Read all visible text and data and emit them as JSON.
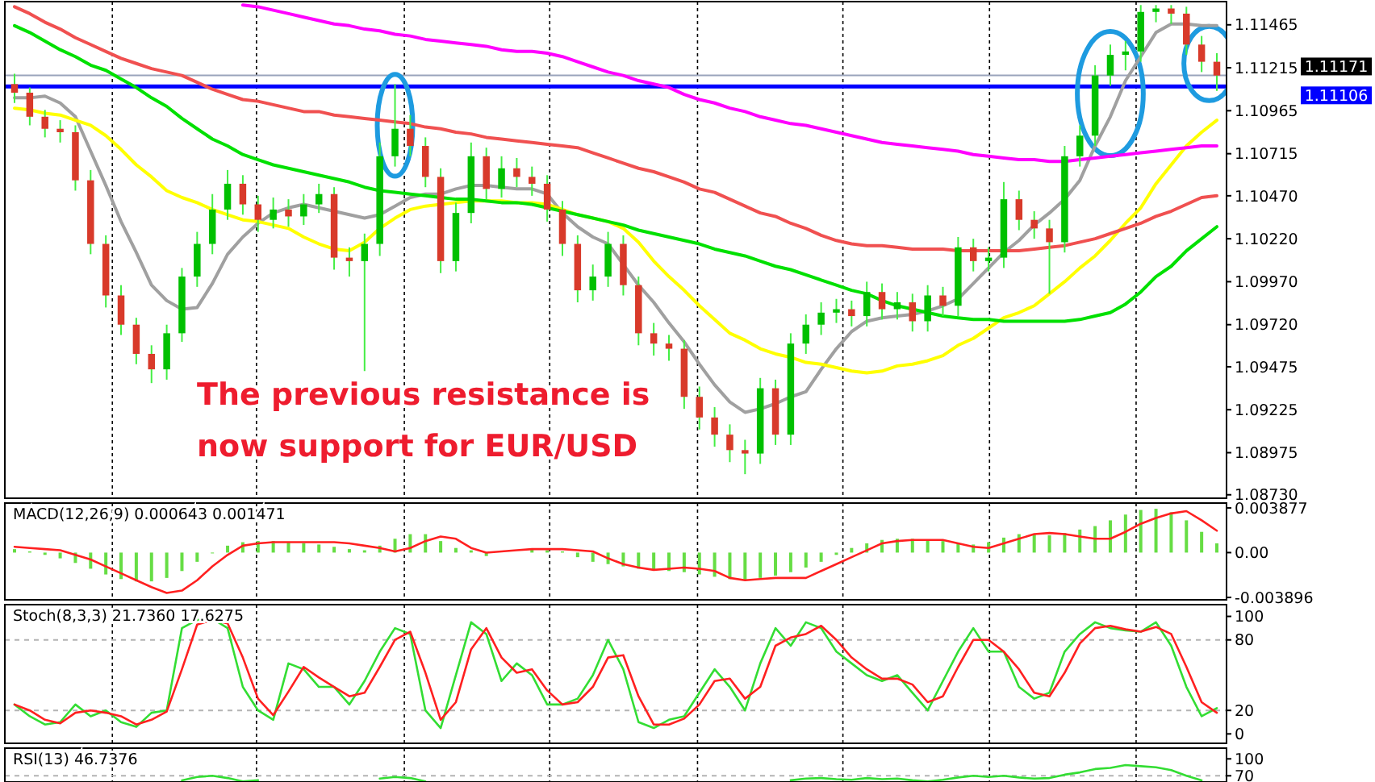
{
  "chart_data": [
    {
      "type": "candlestick",
      "grid": "x",
      "categories": [
        null,
        null,
        null,
        null,
        null,
        null,
        null,
        null,
        null,
        null,
        null,
        null,
        null,
        null,
        null,
        null,
        null,
        null,
        null,
        null,
        null,
        null,
        null,
        null,
        null,
        null,
        null,
        null,
        null,
        null,
        null,
        null,
        null,
        null,
        null,
        null,
        null,
        null,
        null,
        null,
        null,
        null,
        null,
        null,
        null,
        null,
        null,
        null,
        null,
        null,
        null,
        null,
        null,
        null,
        null,
        null,
        null,
        null,
        null,
        null,
        null,
        null,
        null,
        null,
        null,
        null,
        null,
        null,
        null,
        null,
        null,
        null,
        null,
        null,
        null,
        null,
        null,
        null,
        null,
        null
      ],
      "ohlc": [
        [
          1.1112,
          1.1118,
          1.1101,
          1.1107
        ],
        [
          1.1107,
          1.111,
          1.1088,
          1.1093
        ],
        [
          1.1093,
          1.1097,
          1.1081,
          1.1086
        ],
        [
          1.1086,
          1.1091,
          1.1078,
          1.1084
        ],
        [
          1.1084,
          1.1088,
          1.105,
          1.1056
        ],
        [
          1.1056,
          1.1062,
          1.1013,
          1.1019
        ],
        [
          1.1019,
          1.1024,
          1.0982,
          1.0989
        ],
        [
          1.0989,
          1.0995,
          1.0966,
          1.0972
        ],
        [
          1.0972,
          1.0976,
          1.0949,
          1.0955
        ],
        [
          1.0955,
          1.096,
          1.0938,
          1.0946
        ],
        [
          1.0946,
          1.0972,
          1.094,
          1.0967
        ],
        [
          1.0967,
          1.1005,
          1.0962,
          1.1
        ],
        [
          1.1,
          1.1026,
          1.0994,
          1.1019
        ],
        [
          1.1019,
          1.1048,
          1.1013,
          1.1039
        ],
        [
          1.1039,
          1.1062,
          1.1033,
          1.1054
        ],
        [
          1.1054,
          1.1059,
          1.1036,
          1.1042
        ],
        [
          1.1042,
          1.1047,
          1.1026,
          1.1033
        ],
        [
          1.1033,
          1.1046,
          1.1028,
          1.1039
        ],
        [
          1.1039,
          1.1045,
          1.1029,
          1.1035
        ],
        [
          1.1035,
          1.1048,
          1.103,
          1.1042
        ],
        [
          1.1042,
          1.1054,
          1.1037,
          1.1048
        ],
        [
          1.1048,
          1.1052,
          1.1004,
          1.1011
        ],
        [
          1.1011,
          1.1017,
          1.1,
          1.1009
        ],
        [
          1.1009,
          1.1025,
          1.0945,
          1.1019
        ],
        [
          1.1019,
          1.1078,
          1.1012,
          1.107
        ],
        [
          1.107,
          1.1112,
          1.1064,
          1.1086
        ],
        [
          1.1086,
          1.1094,
          1.107,
          1.1076
        ],
        [
          1.1076,
          1.1081,
          1.1052,
          1.1058
        ],
        [
          1.1058,
          1.1063,
          1.1002,
          1.1009
        ],
        [
          1.1009,
          1.1043,
          1.1003,
          1.1037
        ],
        [
          1.1037,
          1.1078,
          1.1031,
          1.107
        ],
        [
          1.107,
          1.1075,
          1.1045,
          1.1051
        ],
        [
          1.1051,
          1.107,
          1.1046,
          1.1063
        ],
        [
          1.1063,
          1.1069,
          1.1052,
          1.1058
        ],
        [
          1.1058,
          1.1064,
          1.1047,
          1.1054
        ],
        [
          1.1054,
          1.1059,
          1.1032,
          1.1039
        ],
        [
          1.1039,
          1.1044,
          1.1012,
          1.1019
        ],
        [
          1.1019,
          1.1024,
          1.0985,
          1.0992
        ],
        [
          1.0992,
          1.1007,
          1.0986,
          1.1
        ],
        [
          1.1,
          1.1026,
          1.0994,
          1.1019
        ],
        [
          1.1019,
          1.1024,
          1.0989,
          1.0995
        ],
        [
          1.0995,
          1.1,
          1.096,
          1.0967
        ],
        [
          1.0967,
          1.0973,
          1.0954,
          1.0961
        ],
        [
          1.0961,
          1.0966,
          1.0951,
          1.0958
        ],
        [
          1.0958,
          1.0963,
          1.0923,
          1.093
        ],
        [
          1.093,
          1.0936,
          1.0911,
          1.0918
        ],
        [
          1.0918,
          1.0924,
          1.0901,
          1.0908
        ],
        [
          1.0908,
          1.0914,
          1.0892,
          1.0899
        ],
        [
          1.0899,
          1.0905,
          1.0885,
          1.0897
        ],
        [
          1.0897,
          1.0941,
          1.0891,
          1.0935
        ],
        [
          1.0935,
          1.094,
          1.0902,
          1.0908
        ],
        [
          1.0908,
          1.0967,
          1.0902,
          1.0961
        ],
        [
          1.0961,
          1.0978,
          1.0955,
          1.0972
        ],
        [
          1.0972,
          1.0985,
          1.0966,
          1.0979
        ],
        [
          1.0979,
          1.0987,
          1.0973,
          1.0981
        ],
        [
          1.0981,
          1.0986,
          1.0971,
          1.0977
        ],
        [
          1.0977,
          1.0997,
          1.0971,
          1.0991
        ],
        [
          1.0991,
          1.0996,
          1.0975,
          1.0981
        ],
        [
          1.0981,
          1.0991,
          1.0975,
          1.0985
        ],
        [
          1.0985,
          1.099,
          1.0968,
          1.0974
        ],
        [
          1.0974,
          1.0995,
          1.0968,
          1.0989
        ],
        [
          1.0989,
          1.0994,
          1.0977,
          1.0983
        ],
        [
          1.0983,
          1.1023,
          1.0977,
          1.1017
        ],
        [
          1.1017,
          1.1022,
          1.1003,
          1.1009
        ],
        [
          1.1009,
          1.1017,
          1.1003,
          1.1011
        ],
        [
          1.1011,
          1.1055,
          1.1005,
          1.1045
        ],
        [
          1.1045,
          1.105,
          1.1027,
          1.1033
        ],
        [
          1.1033,
          1.1038,
          1.1022,
          1.1028
        ],
        [
          1.1028,
          1.1033,
          1.099,
          1.102
        ],
        [
          1.102,
          1.1076,
          1.1014,
          1.107
        ],
        [
          1.107,
          1.1088,
          1.1064,
          1.1082
        ],
        [
          1.1082,
          1.1123,
          1.1076,
          1.1117
        ],
        [
          1.1117,
          1.1135,
          1.1111,
          1.1129
        ],
        [
          1.1129,
          1.1137,
          1.112,
          1.1131
        ],
        [
          1.1131,
          1.1158,
          1.1125,
          1.1154
        ],
        [
          1.1154,
          1.1158,
          1.1148,
          1.1156
        ],
        [
          1.1156,
          1.1158,
          1.1147,
          1.1153
        ],
        [
          1.1153,
          1.1157,
          1.1129,
          1.1135
        ],
        [
          1.1135,
          1.114,
          1.1119,
          1.1125
        ],
        [
          1.1125,
          1.113,
          1.1108,
          1.1117
        ]
      ],
      "series": [
        {
          "type": "line",
          "color": "#a0a0a0",
          "values": [
            1.1104,
            1.1104,
            1.1105,
            1.1101,
            1.1093,
            1.1073,
            1.1053,
            1.1032,
            1.1014,
            1.0995,
            1.0986,
            1.0981,
            1.0982,
            1.0996,
            1.1013,
            1.1023,
            1.1031,
            1.1037,
            1.104,
            1.1042,
            1.104,
            1.1038,
            1.1036,
            1.1034,
            1.1036,
            1.1041,
            1.1046,
            1.1048,
            1.1048,
            1.1051,
            1.1053,
            1.1053,
            1.1052,
            1.1051,
            1.1051,
            1.1048,
            1.1037,
            1.1029,
            1.1023,
            1.1019,
            1.1007,
            1.0995,
            1.0985,
            1.0973,
            1.0962,
            1.0949,
            1.0937,
            1.0927,
            1.0921,
            1.0923,
            1.0926,
            1.093,
            1.0933,
            1.0946,
            1.0958,
            1.0968,
            1.0974,
            1.0976,
            1.0977,
            1.0978,
            1.098,
            1.0983,
            1.0987,
            1.0996,
            1.1005,
            1.1014,
            1.1021,
            1.103,
            1.1037,
            1.1045,
            1.1056,
            1.1076,
            1.1093,
            1.1114,
            1.1128,
            1.1142,
            1.1147,
            1.1147,
            1.1146,
            1.1146
          ]
        },
        {
          "type": "line",
          "color": "#ffff00",
          "values": [
            1.1098,
            1.1097,
            1.1095,
            1.1094,
            1.1091,
            1.1088,
            1.1082,
            1.1074,
            1.1065,
            1.1058,
            1.105,
            1.1046,
            1.1043,
            1.1039,
            1.1036,
            1.1033,
            1.1032,
            1.103,
            1.1028,
            1.1023,
            1.1019,
            1.1016,
            1.1015,
            1.102,
            1.1028,
            1.1034,
            1.1039,
            1.1041,
            1.1042,
            1.1043,
            1.1044,
            1.1044,
            1.1044,
            1.1043,
            1.1043,
            1.1042,
            1.1039,
            1.1036,
            1.1034,
            1.1032,
            1.1028,
            1.102,
            1.1009,
            1.1,
            1.0992,
            1.0983,
            1.0975,
            1.0967,
            1.0963,
            1.0958,
            1.0955,
            1.0953,
            1.095,
            1.0949,
            1.0947,
            1.0945,
            1.0944,
            1.0945,
            1.0948,
            1.0949,
            1.0951,
            1.0954,
            1.096,
            1.0964,
            1.097,
            1.0976,
            1.0979,
            1.0983,
            1.099,
            1.0997,
            1.1005,
            1.1012,
            1.1021,
            1.1031,
            1.104,
            1.1054,
            1.1065,
            1.1076,
            1.1084,
            1.1091
          ]
        },
        {
          "type": "line",
          "color": "#00e000",
          "values": [
            1.1146,
            1.1142,
            1.1137,
            1.1132,
            1.1128,
            1.1123,
            1.112,
            1.1115,
            1.111,
            1.1104,
            1.1099,
            1.1092,
            1.1086,
            1.108,
            1.1076,
            1.1071,
            1.1068,
            1.1065,
            1.1063,
            1.1061,
            1.1059,
            1.1057,
            1.1055,
            1.1052,
            1.105,
            1.1049,
            1.1048,
            1.1047,
            1.1046,
            1.1045,
            1.1045,
            1.1044,
            1.1043,
            1.1043,
            1.1042,
            1.104,
            1.1038,
            1.1036,
            1.1034,
            1.1032,
            1.103,
            1.1027,
            1.1025,
            1.1023,
            1.1021,
            1.1019,
            1.1016,
            1.1014,
            1.1012,
            1.1009,
            1.1006,
            1.1004,
            1.1001,
            1.0998,
            1.0995,
            1.0992,
            1.099,
            1.0986,
            1.0983,
            1.0981,
            1.0979,
            1.0977,
            1.0976,
            1.0975,
            1.0975,
            1.0974,
            1.0974,
            1.0974,
            1.0974,
            1.0974,
            1.0975,
            1.0977,
            1.0979,
            1.0984,
            1.0991,
            1.1,
            1.1006,
            1.1015,
            1.1022,
            1.1029
          ]
        },
        {
          "type": "line",
          "color": "#f05050",
          "values": [
            1.1157,
            1.1153,
            1.1148,
            1.1144,
            1.1139,
            1.1135,
            1.1131,
            1.1127,
            1.1124,
            1.1121,
            1.1119,
            1.1117,
            1.1113,
            1.1109,
            1.1106,
            1.1103,
            1.1102,
            1.11,
            1.1098,
            1.1096,
            1.1096,
            1.1094,
            1.1093,
            1.1092,
            1.1091,
            1.109,
            1.1089,
            1.1087,
            1.1086,
            1.1084,
            1.1083,
            1.1081,
            1.108,
            1.1079,
            1.1078,
            1.1077,
            1.1076,
            1.1075,
            1.1072,
            1.1069,
            1.1066,
            1.1063,
            1.1061,
            1.1058,
            1.1055,
            1.1051,
            1.1049,
            1.1045,
            1.1041,
            1.1037,
            1.1035,
            1.1031,
            1.1028,
            1.1024,
            1.1021,
            1.1019,
            1.1018,
            1.1018,
            1.1017,
            1.1016,
            1.1016,
            1.1016,
            1.1015,
            1.1015,
            1.1015,
            1.1015,
            1.1015,
            1.1016,
            1.1017,
            1.1018,
            1.102,
            1.1022,
            1.1025,
            1.1028,
            1.1031,
            1.1035,
            1.1038,
            1.1042,
            1.1046,
            1.1047
          ]
        },
        {
          "type": "line",
          "color": "#ff00ff",
          "values": [
            null,
            null,
            null,
            null,
            null,
            null,
            null,
            null,
            null,
            null,
            null,
            null,
            null,
            null,
            null,
            1.1158,
            1.1157,
            1.1155,
            1.1153,
            1.1151,
            1.1149,
            1.1147,
            1.1146,
            1.1144,
            1.1143,
            1.1141,
            1.114,
            1.1138,
            1.1137,
            1.1136,
            1.1135,
            1.1134,
            1.1132,
            1.1131,
            1.1131,
            1.113,
            1.1128,
            1.1125,
            1.1122,
            1.1119,
            1.1117,
            1.1114,
            1.1112,
            1.111,
            1.1106,
            1.1103,
            1.1101,
            1.1098,
            1.1096,
            1.1093,
            1.1091,
            1.1089,
            1.1088,
            1.1086,
            1.1084,
            1.1082,
            1.108,
            1.1078,
            1.1077,
            1.1076,
            1.1075,
            1.1074,
            1.1073,
            1.1071,
            1.107,
            1.1069,
            1.1068,
            1.1068,
            1.1067,
            1.1067,
            1.1068,
            1.1069,
            1.107,
            1.1071,
            1.1072,
            1.1073,
            1.1074,
            1.1075,
            1.1076,
            1.1076
          ]
        }
      ],
      "ylim": [
        1.0871,
        1.116
      ],
      "yticks": [
        {
          "value": 1.0873,
          "label": "1.08730"
        },
        {
          "value": 1.08975,
          "label": "1.08975"
        },
        {
          "value": 1.09225,
          "label": "1.09225"
        },
        {
          "value": 1.09475,
          "label": "1.09475"
        },
        {
          "value": 1.0972,
          "label": "1.09720"
        },
        {
          "value": 1.0997,
          "label": "1.09970"
        },
        {
          "value": 1.1022,
          "label": "1.10220"
        },
        {
          "value": 1.1047,
          "label": "1.10470"
        },
        {
          "value": 1.10715,
          "label": "1.10715"
        },
        {
          "value": 1.10965,
          "label": "1.10965"
        },
        {
          "value": 1.11215,
          "label": "1.11215"
        },
        {
          "value": 1.11465,
          "label": "1.11465"
        }
      ],
      "ref_lines": [
        {
          "axis": "y",
          "value": 1.11171,
          "label": "1.11171",
          "color": "#9aa4bc"
        },
        {
          "axis": "y",
          "value": 1.11106,
          "label": "1.11106",
          "color": "#0000ff"
        }
      ],
      "annotations": [
        "The previous resistance is now support for EUR/USD"
      ]
    },
    {
      "type": "bar",
      "grid": "x",
      "title": "MACD(12,26,9) 0.000643 0.001471",
      "categories": [
        null,
        null,
        null,
        null,
        null,
        null,
        null,
        null,
        null,
        null,
        null,
        null,
        null,
        null,
        null,
        null,
        null,
        null,
        null,
        null,
        null,
        null,
        null,
        null,
        null,
        null,
        null,
        null,
        null,
        null,
        null,
        null,
        null,
        null,
        null,
        null,
        null,
        null,
        null,
        null,
        null,
        null,
        null,
        null,
        null,
        null,
        null,
        null,
        null,
        null,
        null,
        null,
        null,
        null,
        null,
        null,
        null,
        null,
        null,
        null,
        null,
        null,
        null,
        null,
        null,
        null,
        null,
        null,
        null,
        null,
        null,
        null,
        null,
        null,
        null,
        null,
        null,
        null,
        null,
        null
      ],
      "series": [
        {
          "type": "bar",
          "color": "#66dd44",
          "values": [
            0.0003,
            0.0001,
            -0.0002,
            -0.0005,
            -0.0009,
            -0.0014,
            -0.0019,
            -0.0023,
            -0.0025,
            -0.0025,
            -0.0022,
            -0.0016,
            -0.0008,
            0.0,
            0.0006,
            0.0009,
            0.001,
            0.001,
            0.0009,
            0.0008,
            0.0007,
            0.0005,
            0.0003,
            0.0002,
            0.0006,
            0.0012,
            0.0016,
            0.0016,
            0.001,
            0.0004,
            0.0002,
            -0.0003,
            null,
            null,
            0.0003,
            0.0002,
            0.0001,
            -0.0004,
            -0.0008,
            -0.001,
            -0.0012,
            -0.0014,
            -0.0015,
            -0.0016,
            -0.0017,
            -0.0019,
            -0.0021,
            -0.0023,
            -0.0024,
            -0.0022,
            -0.002,
            -0.0017,
            -0.0013,
            -0.0008,
            -0.0002,
            0.0004,
            0.0008,
            0.0011,
            0.0012,
            0.0012,
            0.0011,
            0.001,
            0.0008,
            0.0007,
            0.0009,
            0.0013,
            0.0016,
            0.0016,
            0.0015,
            0.0017,
            0.002,
            0.0023,
            0.0028,
            0.0033,
            0.0037,
            0.0038,
            0.0035,
            0.0028,
            0.0018,
            0.0008
          ]
        },
        {
          "type": "line",
          "color": "#ff2020",
          "values": [
            0.0005,
            0.0004,
            0.0003,
            0.0002,
            -0.0002,
            -0.0006,
            -0.0012,
            -0.0018,
            -0.0024,
            -0.003,
            -0.0035,
            -0.0033,
            -0.0024,
            -0.0012,
            -0.0002,
            0.0006,
            0.0008,
            0.0009,
            0.0009,
            0.0009,
            0.0009,
            0.0009,
            0.0008,
            0.0006,
            0.0004,
            0.0001,
            0.0004,
            0.001,
            0.0014,
            0.0012,
            0.0004,
            0.0,
            0.0001,
            0.0002,
            0.0003,
            0.0003,
            0.0003,
            0.0002,
            0.0001,
            -0.0005,
            -0.001,
            -0.0013,
            -0.0015,
            -0.0014,
            -0.0013,
            -0.0014,
            -0.0016,
            -0.0022,
            -0.0024,
            -0.0023,
            -0.0022,
            -0.0022,
            -0.0022,
            -0.0016,
            -0.001,
            -0.0004,
            0.0002,
            0.0008,
            0.001,
            0.0011,
            0.0011,
            0.0011,
            0.0008,
            0.0005,
            0.0004,
            0.0008,
            0.0012,
            0.0016,
            0.0017,
            0.0016,
            0.0014,
            0.0012,
            0.0012,
            0.0018,
            0.0025,
            0.003,
            0.0034,
            0.0036,
            0.0028,
            0.0019
          ]
        }
      ],
      "ylim": [
        -0.0041,
        0.0043
      ],
      "yticks": [
        {
          "value": 0.003877,
          "label": "0.003877"
        },
        {
          "value": 0,
          "label": "0.00"
        },
        {
          "value": -0.003896,
          "label": "-0.003896"
        }
      ]
    },
    {
      "type": "line",
      "grid": "x",
      "title": "Stoch(8,3,3) 21.7360 17.6275",
      "categories": [
        null,
        null,
        null,
        null,
        null,
        null,
        null,
        null,
        null,
        null,
        null,
        null,
        null,
        null,
        null,
        null,
        null,
        null,
        null,
        null,
        null,
        null,
        null,
        null,
        null,
        null,
        null,
        null,
        null,
        null,
        null,
        null,
        null,
        null,
        null,
        null,
        null,
        null,
        null,
        null,
        null,
        null,
        null,
        null,
        null,
        null,
        null,
        null,
        null,
        null,
        null,
        null,
        null,
        null,
        null,
        null,
        null,
        null,
        null,
        null,
        null,
        null,
        null,
        null,
        null,
        null,
        null,
        null,
        null,
        null,
        null,
        null,
        null,
        null,
        null,
        null,
        null,
        null,
        null,
        null
      ],
      "series": [
        {
          "color": "#33dd33",
          "values": [
            25,
            15,
            8,
            10,
            25,
            15,
            20,
            10,
            6,
            18,
            20,
            90,
            97,
            98,
            90,
            40,
            20,
            12,
            60,
            55,
            40,
            40,
            25,
            45,
            70,
            90,
            85,
            20,
            5,
            50,
            95,
            85,
            45,
            60,
            50,
            25,
            25,
            30,
            50,
            80,
            55,
            10,
            5,
            12,
            15,
            35,
            55,
            40,
            20,
            60,
            90,
            75,
            95,
            90,
            70,
            60,
            50,
            45,
            50,
            35,
            20,
            45,
            70,
            90,
            70,
            70,
            40,
            30,
            35,
            70,
            85,
            95,
            90,
            88,
            87,
            95,
            75,
            40,
            15,
            22
          ]
        },
        {
          "color": "#ff2020",
          "values": [
            25,
            20,
            12,
            9,
            18,
            20,
            18,
            15,
            8,
            12,
            19,
            55,
            93,
            97,
            94,
            65,
            30,
            16,
            36,
            57,
            48,
            40,
            32,
            35,
            57,
            80,
            87,
            52,
            12,
            27,
            72,
            90,
            65,
            52,
            55,
            37,
            25,
            27,
            40,
            65,
            67,
            32,
            8,
            8,
            13,
            25,
            45,
            47,
            30,
            40,
            75,
            82,
            85,
            92,
            80,
            65,
            55,
            47,
            47,
            42,
            27,
            32,
            57,
            80,
            80,
            70,
            55,
            35,
            32,
            52,
            77,
            90,
            92,
            89,
            87,
            91,
            85,
            57,
            27,
            18
          ]
        }
      ],
      "ylim": [
        -8,
        110
      ],
      "yticks": [
        100,
        80,
        20,
        0
      ],
      "ref_lines": [
        {
          "axis": "y",
          "value": 80,
          "color": "#b4b4b4",
          "line_style": "dashed"
        },
        {
          "axis": "y",
          "value": 20,
          "color": "#b4b4b4",
          "line_style": "dashed"
        }
      ]
    },
    {
      "type": "line",
      "grid": "x",
      "title": "RSI(13) 46.7376",
      "categories": [
        null,
        null,
        null,
        null,
        null,
        null,
        null,
        null,
        null,
        null,
        null,
        null,
        null,
        null,
        null,
        null,
        null,
        null,
        null,
        null,
        null,
        null,
        null,
        null,
        null,
        null,
        null,
        null,
        null,
        null,
        null,
        null,
        null,
        null,
        null,
        null,
        null,
        null,
        null,
        null,
        null,
        null,
        null,
        null,
        null,
        null,
        null,
        null,
        null,
        null,
        null,
        null,
        null,
        null,
        null,
        null,
        null,
        null,
        null,
        null,
        null,
        null,
        null,
        null,
        null,
        null,
        null,
        null,
        null,
        null,
        null,
        null,
        null,
        null,
        null,
        null,
        null,
        null,
        null,
        null
      ],
      "series": [
        {
          "color": "#33dd33",
          "values": [
            null,
            null,
            null,
            null,
            null,
            null,
            null,
            null,
            null,
            null,
            null,
            62,
            68,
            70,
            66,
            60,
            62,
            null,
            null,
            null,
            null,
            null,
            null,
            null,
            65,
            68,
            66,
            60,
            null,
            null,
            null,
            null,
            null,
            null,
            null,
            null,
            null,
            null,
            null,
            null,
            null,
            null,
            null,
            null,
            null,
            null,
            null,
            null,
            null,
            null,
            null,
            62,
            65,
            66,
            64,
            63,
            66,
            64,
            65,
            62,
            60,
            63,
            67,
            70,
            68,
            70,
            67,
            65,
            66,
            72,
            76,
            82,
            84,
            89,
            87,
            85,
            80,
            70,
            62,
            null
          ]
        }
      ],
      "ylim": [
        59,
        119
      ],
      "yticks": [
        100,
        70
      ],
      "ref_lines": [
        {
          "axis": "y",
          "value": 70,
          "color": "#b4b4b4",
          "line_style": "dashed"
        }
      ]
    }
  ]
}
